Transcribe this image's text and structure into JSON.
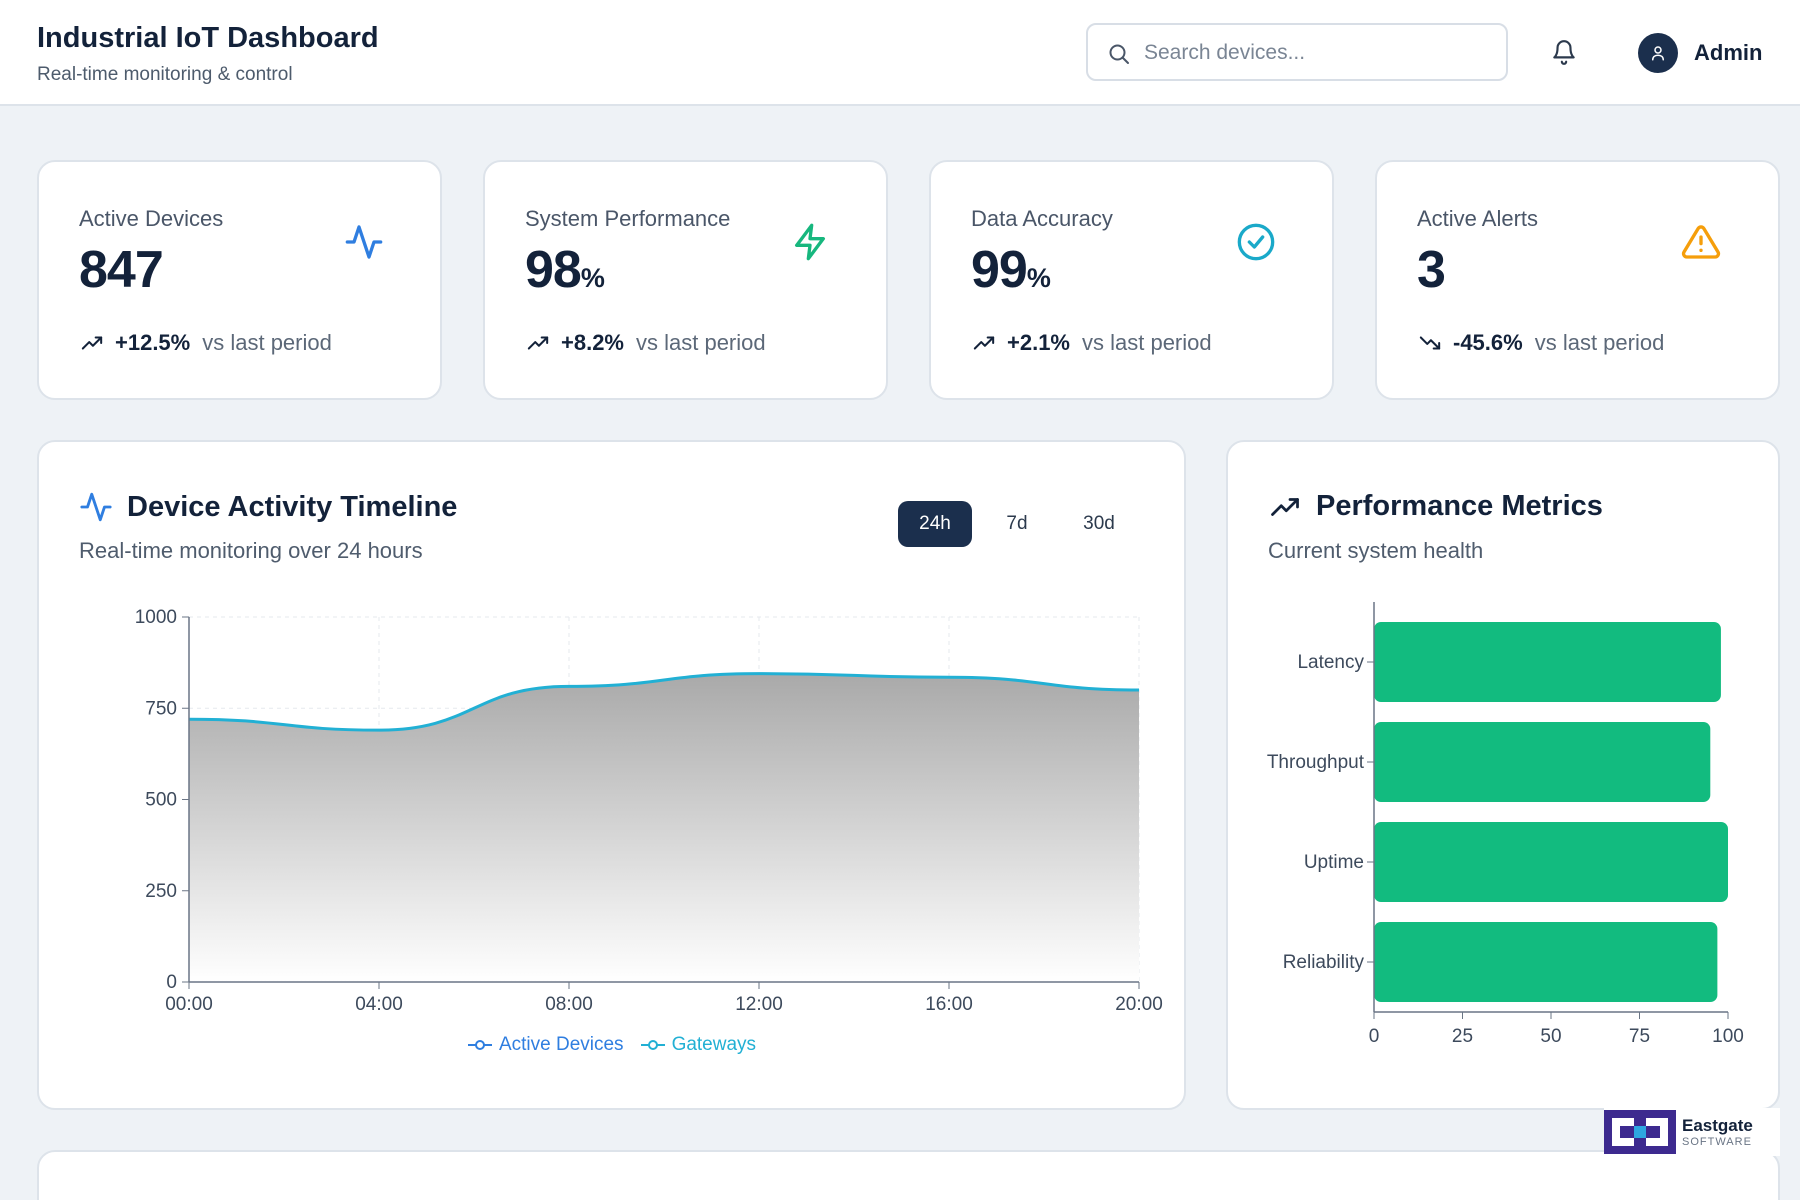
{
  "header": {
    "title": "Industrial IoT Dashboard",
    "subtitle": "Real-time monitoring & control",
    "search_placeholder": "Search devices...",
    "user_name": "Admin"
  },
  "stats": [
    {
      "label": "Active Devices",
      "value": "847",
      "unit": "",
      "change": "+12.5%",
      "compare": "vs last period",
      "direction": "up",
      "icon": "activity-icon",
      "icon_color": "#2f7ee0"
    },
    {
      "label": "System Performance",
      "value": "98",
      "unit": "%",
      "change": "+8.2%",
      "compare": "vs last period",
      "direction": "up",
      "icon": "zap-icon",
      "icon_color": "#17b77e"
    },
    {
      "label": "Data Accuracy",
      "value": "99",
      "unit": "%",
      "change": "+2.1%",
      "compare": "vs last period",
      "direction": "up",
      "icon": "check-circle-icon",
      "icon_color": "#1aa9c9"
    },
    {
      "label": "Active Alerts",
      "value": "3",
      "unit": "",
      "change": "-45.6%",
      "compare": "vs last period",
      "direction": "down",
      "icon": "alert-triangle-icon",
      "icon_color": "#f59e0b"
    }
  ],
  "timeline": {
    "title": "Device Activity Timeline",
    "subtitle": "Real-time monitoring over 24 hours",
    "ranges": [
      "24h",
      "7d",
      "30d"
    ],
    "active_range": "24h",
    "legend": [
      "Active Devices",
      "Gateways"
    ]
  },
  "metrics": {
    "title": "Performance Metrics",
    "subtitle": "Current system health"
  },
  "logo": {
    "name": "Eastgate",
    "sub": "SOFTWARE"
  },
  "colors": {
    "accent": "#1b2f4d",
    "line": "#22b0d4",
    "bar": "#12bb7f"
  },
  "chart_data": [
    {
      "type": "area",
      "x": [
        "00:00",
        "04:00",
        "08:00",
        "12:00",
        "16:00",
        "20:00"
      ],
      "series": [
        {
          "name": "Active Devices",
          "values": [
            720,
            690,
            810,
            845,
            835,
            800
          ]
        }
      ],
      "ylim": [
        0,
        1000
      ],
      "yticks": [
        0,
        250,
        500,
        750,
        1000
      ],
      "grid": true,
      "legend": "bottom"
    },
    {
      "type": "bar",
      "orientation": "horizontal",
      "categories": [
        "Latency",
        "Throughput",
        "Uptime",
        "Reliability"
      ],
      "values": [
        98,
        95,
        100,
        97
      ],
      "xlim": [
        0,
        100
      ],
      "xticks": [
        0,
        25,
        50,
        75,
        100
      ]
    }
  ]
}
